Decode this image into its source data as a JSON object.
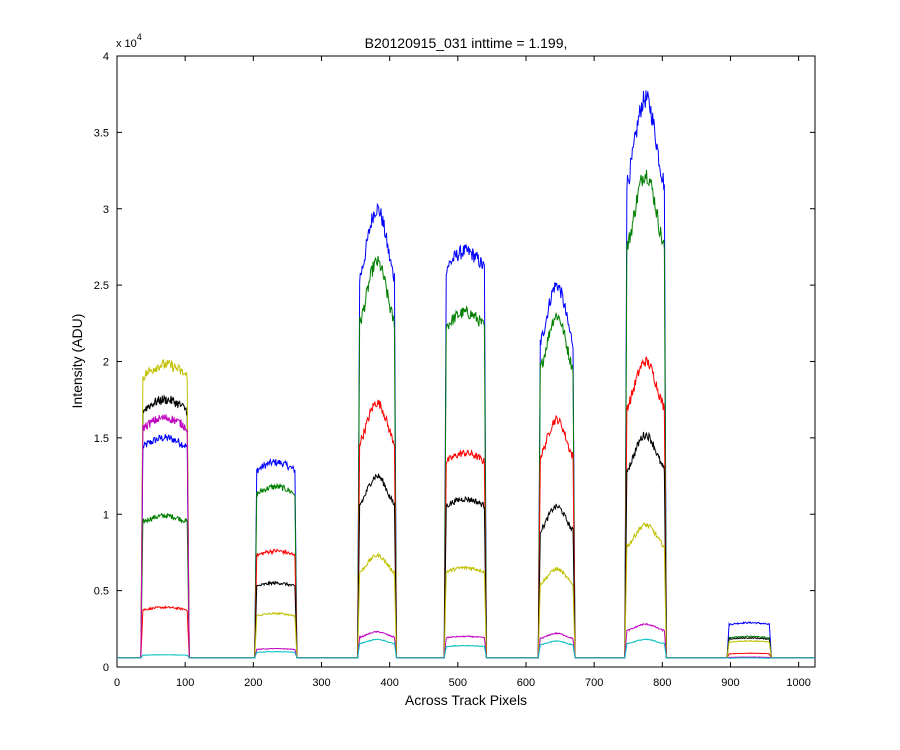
{
  "chart_data": {
    "type": "line",
    "title": "B20120915_031 inttime = 1.199,",
    "xlabel": "Across Track Pixels",
    "ylabel": "Intensity (ADU)",
    "y_exponent_label": "x 10",
    "y_exponent_power": "4",
    "xlim": [
      0,
      1024
    ],
    "ylim": [
      0,
      40000
    ],
    "xticks": [
      0,
      100,
      200,
      300,
      400,
      500,
      600,
      700,
      800,
      900,
      1000
    ],
    "yticks": [
      0,
      5000,
      10000,
      15000,
      20000,
      25000,
      30000,
      35000,
      40000
    ],
    "ytick_labels": [
      "0",
      "0.5",
      "1",
      "1.5",
      "2",
      "2.5",
      "3",
      "3.5",
      "4"
    ],
    "grid": false,
    "baseline": 600,
    "segments": [
      {
        "x_start": 35,
        "x_end": 106,
        "shape": "flat"
      },
      {
        "x_start": 202,
        "x_end": 264,
        "shape": "flat"
      },
      {
        "x_start": 353,
        "x_end": 410,
        "shape": "peak"
      },
      {
        "x_start": 480,
        "x_end": 542,
        "shape": "flat"
      },
      {
        "x_start": 618,
        "x_end": 672,
        "shape": "peak"
      },
      {
        "x_start": 745,
        "x_end": 806,
        "shape": "peak"
      },
      {
        "x_start": 895,
        "x_end": 960,
        "shape": "flat"
      }
    ],
    "series": [
      {
        "color": "#0000ff",
        "levels": [
          15000,
          13400,
          30000,
          27200,
          25000,
          37200,
          2900
        ]
      },
      {
        "color": "#007f00",
        "levels": [
          9900,
          11800,
          26500,
          23200,
          23000,
          32300,
          2000
        ]
      },
      {
        "color": "#ff0000",
        "levels": [
          3900,
          7600,
          17300,
          14000,
          16200,
          20000,
          900
        ]
      },
      {
        "color": "#000000",
        "levels": [
          17500,
          5500,
          12500,
          11000,
          10500,
          15200,
          1900
        ]
      },
      {
        "color": "#c0c000",
        "levels": [
          19800,
          3500,
          7300,
          6500,
          6400,
          9300,
          1700
        ]
      },
      {
        "color": "#bf00bf",
        "levels": [
          16300,
          1200,
          2300,
          2000,
          2200,
          2800,
          650
        ]
      },
      {
        "color": "#00bfbf",
        "levels": [
          800,
          1000,
          1800,
          1400,
          1700,
          1800,
          600
        ]
      }
    ]
  }
}
